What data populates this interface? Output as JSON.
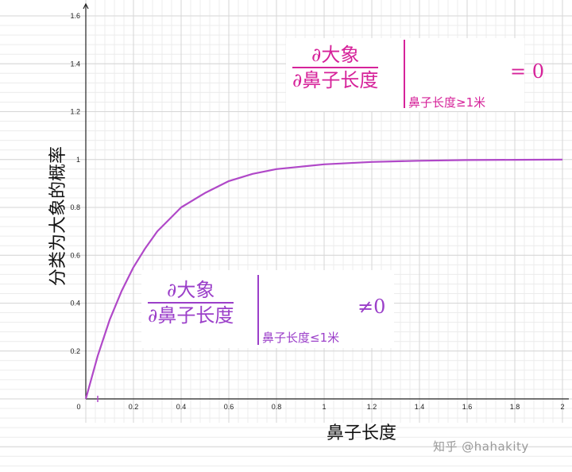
{
  "chart_data": {
    "type": "line",
    "title": "",
    "xlabel": "鼻子长度",
    "ylabel": "分类为大象的概率",
    "xlim": [
      0,
      2
    ],
    "ylim": [
      0,
      1.6
    ],
    "x_ticks": [
      "0",
      "0.2",
      "0.4",
      "0.6",
      "0.8",
      "1",
      "1.2",
      "1.4",
      "1.6",
      "1.8",
      "2"
    ],
    "y_ticks": [
      "0.2",
      "0.4",
      "0.6",
      "0.8",
      "1",
      "1.2",
      "1.4",
      "1.6"
    ],
    "grid": true,
    "series": [
      {
        "color": "#b048c8",
        "x": [
          0,
          0.05,
          0.1,
          0.15,
          0.2,
          0.25,
          0.3,
          0.35,
          0.4,
          0.5,
          0.6,
          0.7,
          0.8,
          0.9,
          1.0,
          1.2,
          1.4,
          1.6,
          1.8,
          2.0
        ],
        "y": [
          0,
          0.18,
          0.33,
          0.45,
          0.55,
          0.63,
          0.7,
          0.75,
          0.8,
          0.86,
          0.91,
          0.94,
          0.96,
          0.97,
          0.98,
          0.99,
          0.995,
          0.998,
          0.999,
          1.0
        ]
      }
    ],
    "annotations": [
      {
        "color": "#d6239a",
        "numerator": "∂大象",
        "denominator": "∂鼻子长度",
        "subscript": "鼻子长度≥1米",
        "rhs": "= 0"
      },
      {
        "color": "#9b3fc9",
        "numerator": "∂大象",
        "denominator": "∂鼻子长度",
        "subscript": "鼻子长度≤1米",
        "rhs": "≠0"
      }
    ]
  },
  "watermark": "知乎 @hahakity"
}
